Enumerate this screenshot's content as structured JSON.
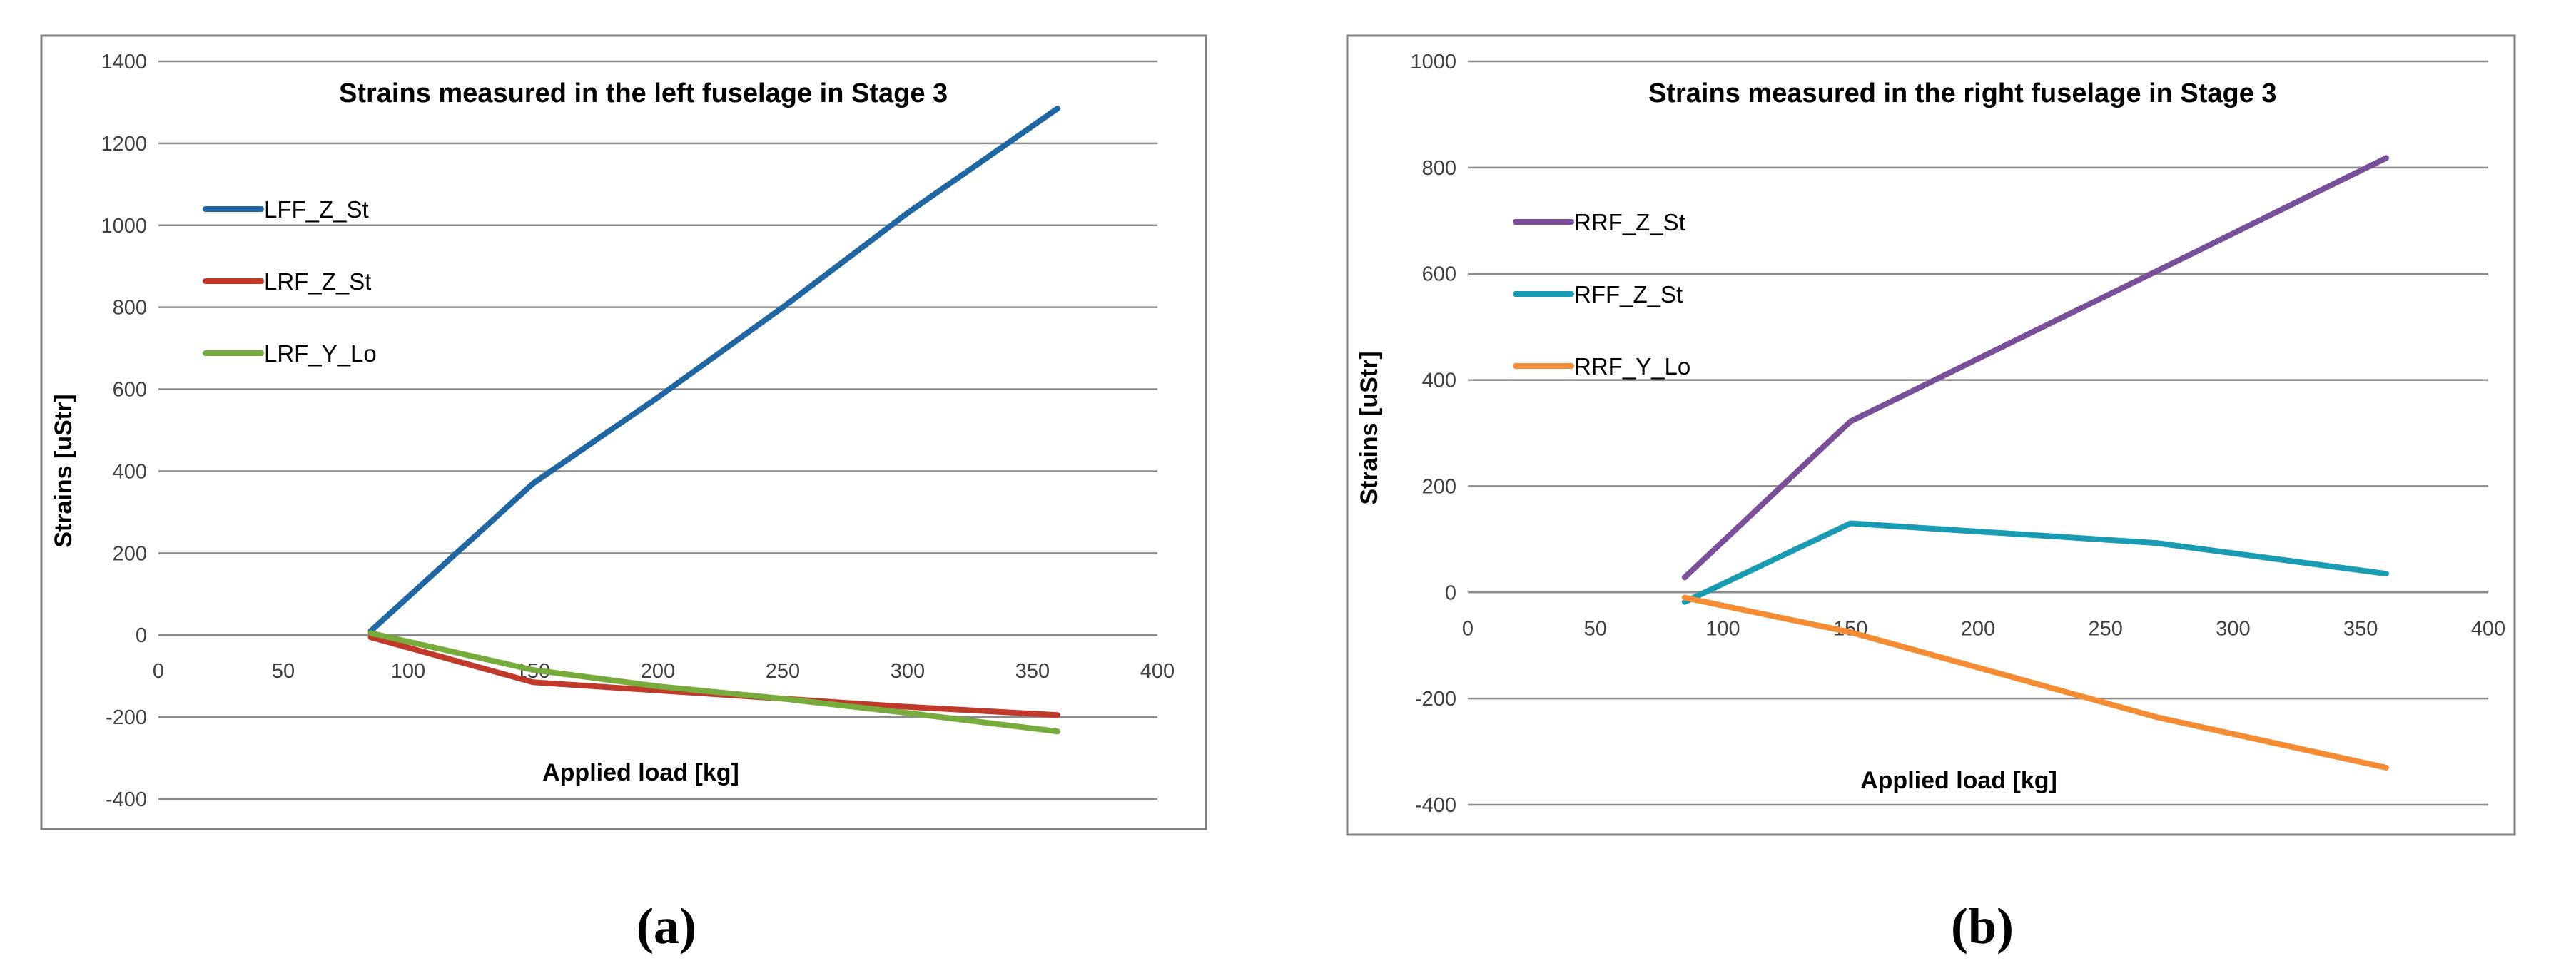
{
  "chart_data": [
    {
      "type": "line",
      "caption": "(a)",
      "title": "Strains measured in the left fuselage in Stage 3",
      "xlabel": "Applied load [kg]",
      "ylabel": "Strains [uStr]",
      "xlim": [
        0,
        400
      ],
      "ylim": [
        -400,
        1400
      ],
      "xticks": [
        "0",
        "50",
        "100",
        "150",
        "200",
        "250",
        "300",
        "350",
        "400"
      ],
      "yticks": [
        "-400",
        "-200",
        "0",
        "200",
        "400",
        "600",
        "800",
        "1000",
        "1200",
        "1400"
      ],
      "grid": true,
      "legend_position": "upper-left",
      "series": [
        {
          "name": "LFF_Z_St",
          "color": "#1f66a3",
          "x": [
            85,
            150,
            200,
            250,
            300,
            360
          ],
          "y": [
            10,
            370,
            580,
            800,
            1030,
            1285
          ]
        },
        {
          "name": "LRF_Z_St",
          "color": "#c0392b",
          "x": [
            85,
            150,
            200,
            250,
            300,
            360
          ],
          "y": [
            -5,
            -115,
            -135,
            -155,
            -175,
            -195
          ]
        },
        {
          "name": "LRF_Y_Lo",
          "color": "#77ab3c",
          "x": [
            85,
            150,
            200,
            250,
            300,
            360
          ],
          "y": [
            5,
            -85,
            -125,
            -155,
            -190,
            -235
          ]
        }
      ]
    },
    {
      "type": "line",
      "caption": "(b)",
      "title": "Strains measured in the right fuselage in Stage 3",
      "xlabel": "Applied load [kg]",
      "ylabel": "Strains [uStr]",
      "xlim": [
        0,
        400
      ],
      "ylim": [
        -400,
        1000
      ],
      "xticks": [
        "0",
        "50",
        "100",
        "150",
        "200",
        "250",
        "300",
        "350",
        "400"
      ],
      "yticks": [
        "-400",
        "-200",
        "0",
        "200",
        "400",
        "600",
        "800",
        "1000"
      ],
      "grid": true,
      "legend_position": "upper-left",
      "series": [
        {
          "name": "RRF_Z_St",
          "color": "#7a4f9a",
          "x": [
            85,
            150,
            270,
            360
          ],
          "y": [
            28,
            322,
            605,
            818
          ]
        },
        {
          "name": "RFF_Z_St",
          "color": "#1a9bb4",
          "x": [
            85,
            150,
            270,
            360
          ],
          "y": [
            -18,
            130,
            93,
            35
          ]
        },
        {
          "name": "RRF_Y_Lo",
          "color": "#f58b32",
          "x": [
            85,
            150,
            270,
            360
          ],
          "y": [
            -10,
            -75,
            -235,
            -330
          ]
        }
      ]
    }
  ]
}
